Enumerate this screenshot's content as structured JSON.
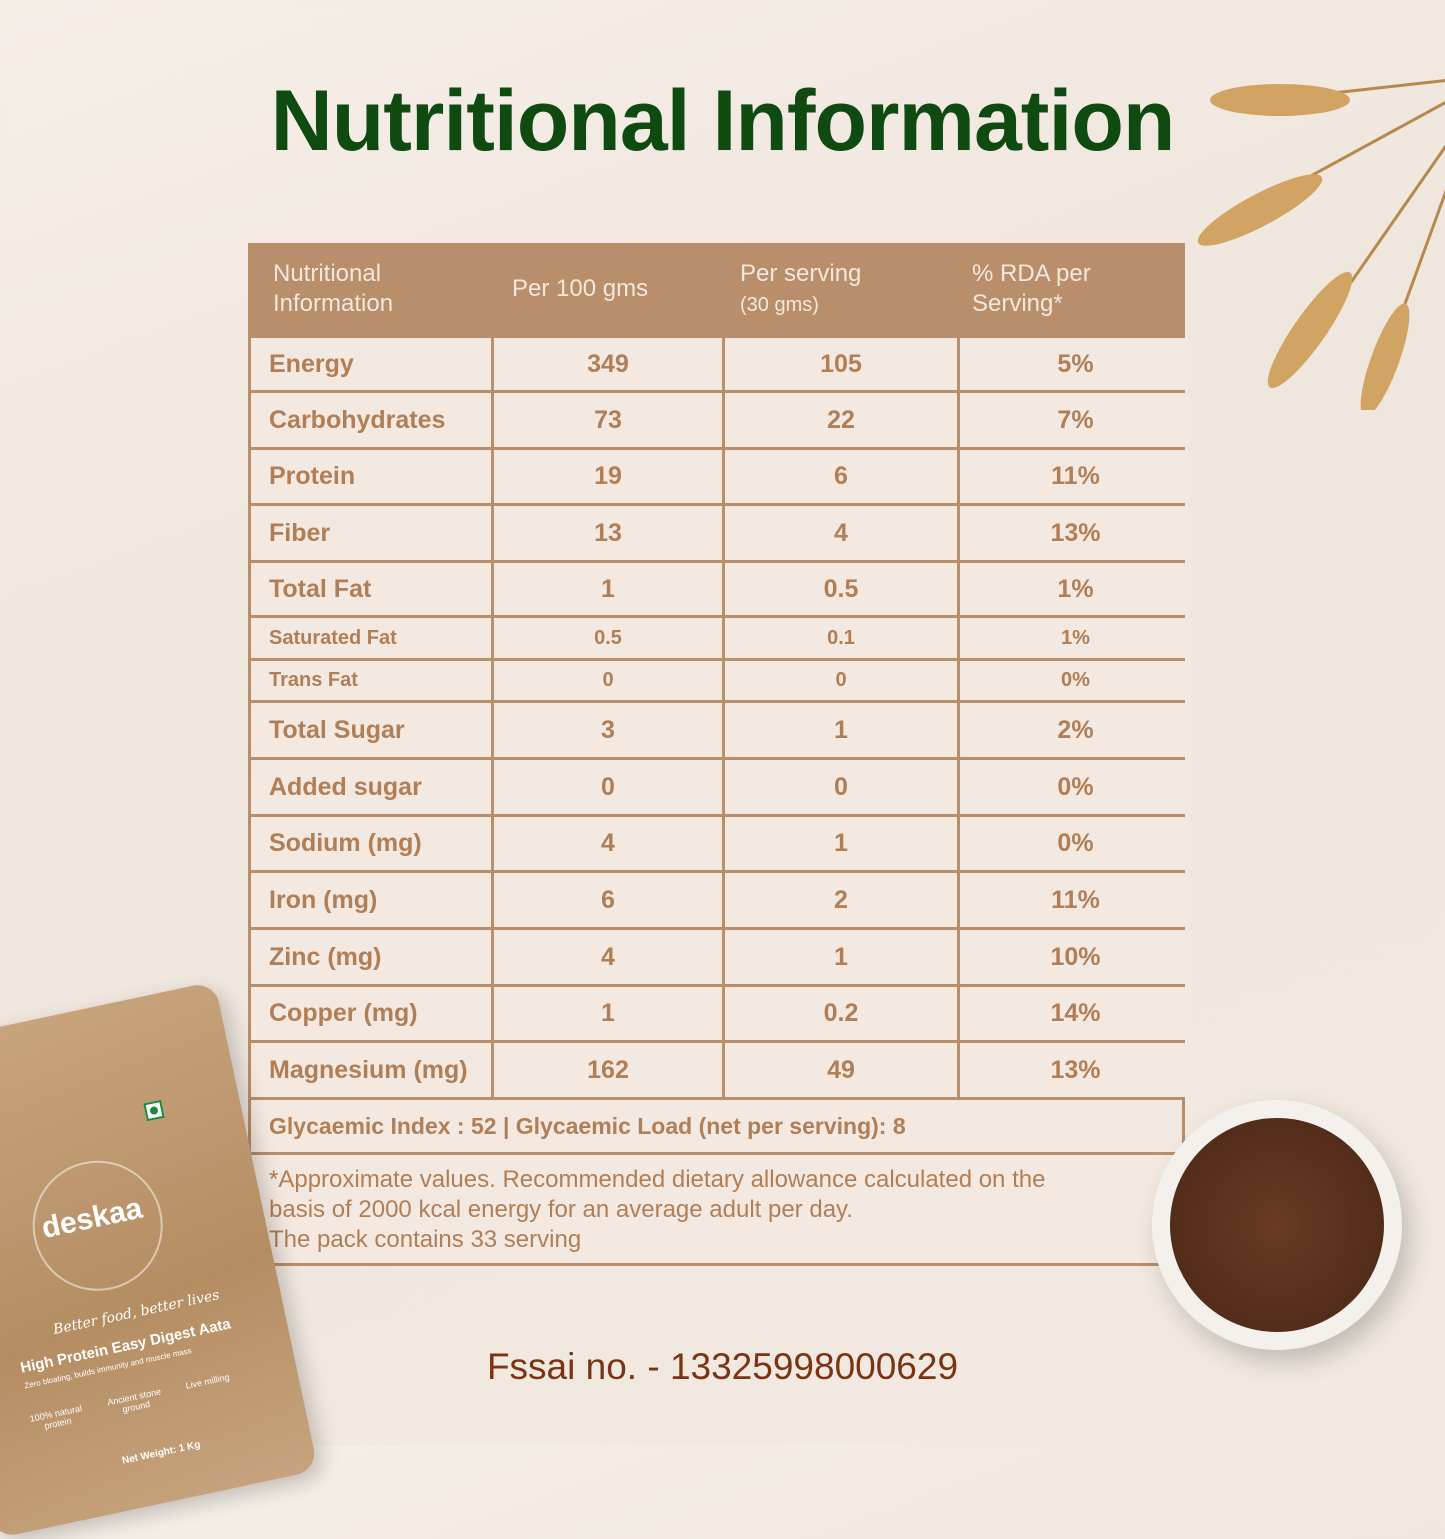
{
  "title": "Nutritional Information",
  "table": {
    "headers": [
      "Nutritional Information",
      "Per 100 gms",
      "Per serving",
      "% RDA per Serving*"
    ],
    "header_sub": "(30 gms)",
    "rows": [
      [
        "Energy",
        "349",
        "105",
        "5%"
      ],
      [
        "Carbohydrates",
        "73",
        "22",
        "7%"
      ],
      [
        "Protein",
        "19",
        "6",
        "11%"
      ],
      [
        "Fiber",
        "13",
        "4",
        "13%"
      ],
      [
        "Total Fat",
        "1",
        "0.5",
        "1%"
      ],
      [
        "Saturated Fat",
        "0.5",
        "0.1",
        "1%"
      ],
      [
        "Trans Fat",
        "0",
        "0",
        "0%"
      ],
      [
        "Total Sugar",
        "3",
        "1",
        "2%"
      ],
      [
        "Added sugar",
        "0",
        "0",
        "0%"
      ],
      [
        "Sodium (mg)",
        "4",
        "1",
        "0%"
      ],
      [
        "Iron (mg)",
        "6",
        "2",
        "11%"
      ],
      [
        "Zinc (mg)",
        "4",
        "1",
        "10%"
      ],
      [
        "Copper (mg)",
        "1",
        "0.2",
        "14%"
      ],
      [
        "Magnesium (mg)",
        "162",
        "49",
        "13%"
      ]
    ],
    "glycaemic": "Glycaemic Index : 52 | Glycaemic Load (net per serving): 8",
    "footnote": [
      "*Approximate values. Recommended dietary allowance calculated on the",
      "basis of 2000 kcal energy for an average adult per day.",
      "The pack contains 33 serving"
    ]
  },
  "fssai": "Fssai no. - 13325998000629",
  "pack": {
    "brand": "deskaa",
    "tagline": "Better food, better lives",
    "product": "High Protein Easy Digest Aata",
    "subtitle": "Zero bloating, builds immunity and muscle mass",
    "features": [
      "100% natural protein",
      "Ancient stone ground",
      "Live milling"
    ],
    "net_weight": "Net Weight: 1 Kg"
  },
  "colors": {
    "title": "#0f4a10",
    "table": "#b88e6b",
    "text": "#b07e57",
    "fssai": "#7a3414"
  }
}
